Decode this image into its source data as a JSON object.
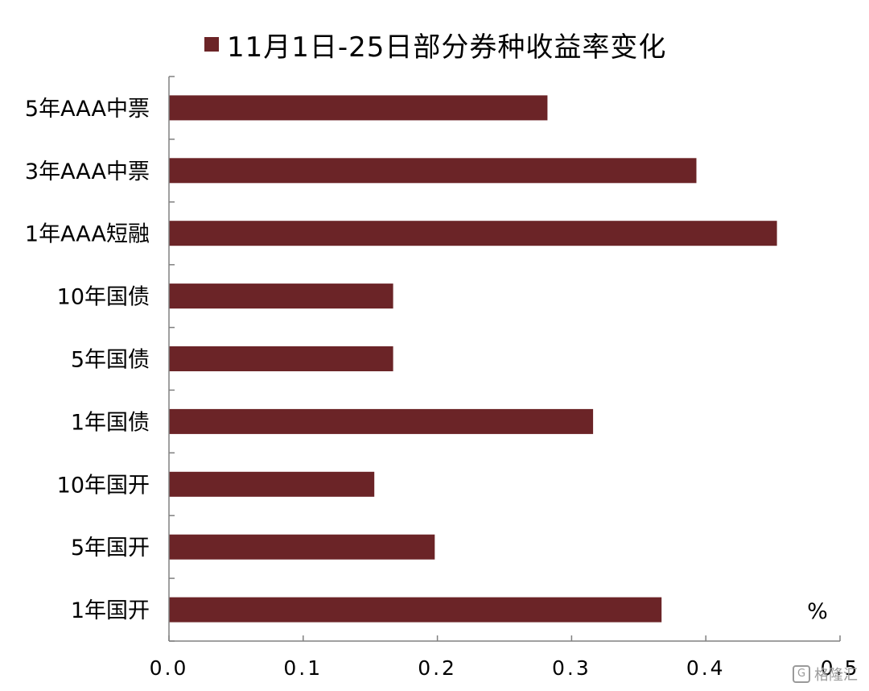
{
  "chart_data": {
    "type": "bar",
    "orientation": "horizontal",
    "categories": [
      "5年AAA中票",
      "3年AAA中票",
      "1年AAA短融",
      "10年国债",
      "5年国债",
      "1年国债",
      "10年国开",
      "5年国开",
      "1年国开"
    ],
    "series": [
      {
        "name": "11月1日-25日部分券种收益率变化",
        "values": [
          0.282,
          0.393,
          0.453,
          0.167,
          0.167,
          0.316,
          0.153,
          0.198,
          0.367
        ]
      }
    ],
    "xlim": [
      0.0,
      0.5
    ],
    "xticks": [
      "0.0",
      "0.1",
      "0.2",
      "0.3",
      "0.4",
      "0.5"
    ],
    "unit": "%",
    "grid": false,
    "legend_position": "top",
    "bar_color": "#6b2427"
  },
  "watermark": {
    "icon": "G",
    "text": "格隆汇"
  }
}
